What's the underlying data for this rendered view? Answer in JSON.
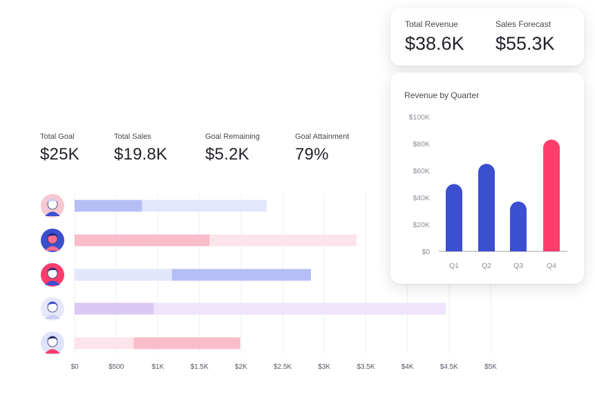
{
  "kpis": [
    {
      "label": "Total Goal",
      "value": "$25K"
    },
    {
      "label": "Total Sales",
      "value": "$19.8K"
    },
    {
      "label": "Goal Remaining",
      "value": "$5.2K"
    },
    {
      "label": "Goal Attainment",
      "value": "79%"
    }
  ],
  "summary": {
    "total_revenue_label": "Total Revenue",
    "total_revenue_value": "$38.6K",
    "sales_forecast_label": "Sales Forecast",
    "sales_forecast_value": "$55.3K"
  },
  "colors": {
    "blue": "#3b4fcf",
    "pink": "#ff3d6c",
    "light_blue": "#b5bef5",
    "pale_blue": "#e3e7fc",
    "light_pink": "#f9bcc8",
    "pale_pink": "#fde4ea",
    "light_purple": "#dcc8f4",
    "pale_purple": "#eee4fb",
    "grid": "#eceef3",
    "axis_text": "#555863"
  },
  "chart_data": [
    {
      "type": "bar",
      "orientation": "horizontal",
      "xlim": [
        0,
        5000
      ],
      "ticks": [
        "$0",
        "$500",
        "$1K",
        "$1.5K",
        "$2K",
        "$2.5K",
        "$3K",
        "$3.5K",
        "$4K",
        "$4.5K",
        "$5K"
      ],
      "grid": true,
      "rows": [
        {
          "avatar": "avatar-1-icon",
          "sales": 810,
          "goal": 2310,
          "color": "blue"
        },
        {
          "avatar": "avatar-2-icon",
          "sales": 1620,
          "goal": 3390,
          "color": "pink"
        },
        {
          "avatar": "avatar-3-icon",
          "sales": 2840,
          "goal": 2840,
          "accent_start": 1170,
          "color": "blue"
        },
        {
          "avatar": "avatar-4-icon",
          "sales": 950,
          "goal": 4460,
          "color": "purple"
        },
        {
          "avatar": "avatar-5-icon",
          "sales": 1990,
          "goal": 1990,
          "accent_start": 710,
          "color": "pink"
        }
      ]
    },
    {
      "type": "bar",
      "title": "Revenue by Quarter",
      "categories": [
        "Q1",
        "Q2",
        "Q3",
        "Q4"
      ],
      "values": [
        50000,
        65000,
        37000,
        83000
      ],
      "bar_colors": [
        "blue",
        "blue",
        "blue",
        "pink"
      ],
      "ylim": [
        0,
        100000
      ],
      "ytick_values": [
        0,
        20000,
        40000,
        60000,
        80000,
        100000
      ],
      "ytick_labels": [
        "$0",
        "$20K",
        "$40K",
        "$60K",
        "$80K",
        "$100K"
      ],
      "grid": false
    }
  ]
}
